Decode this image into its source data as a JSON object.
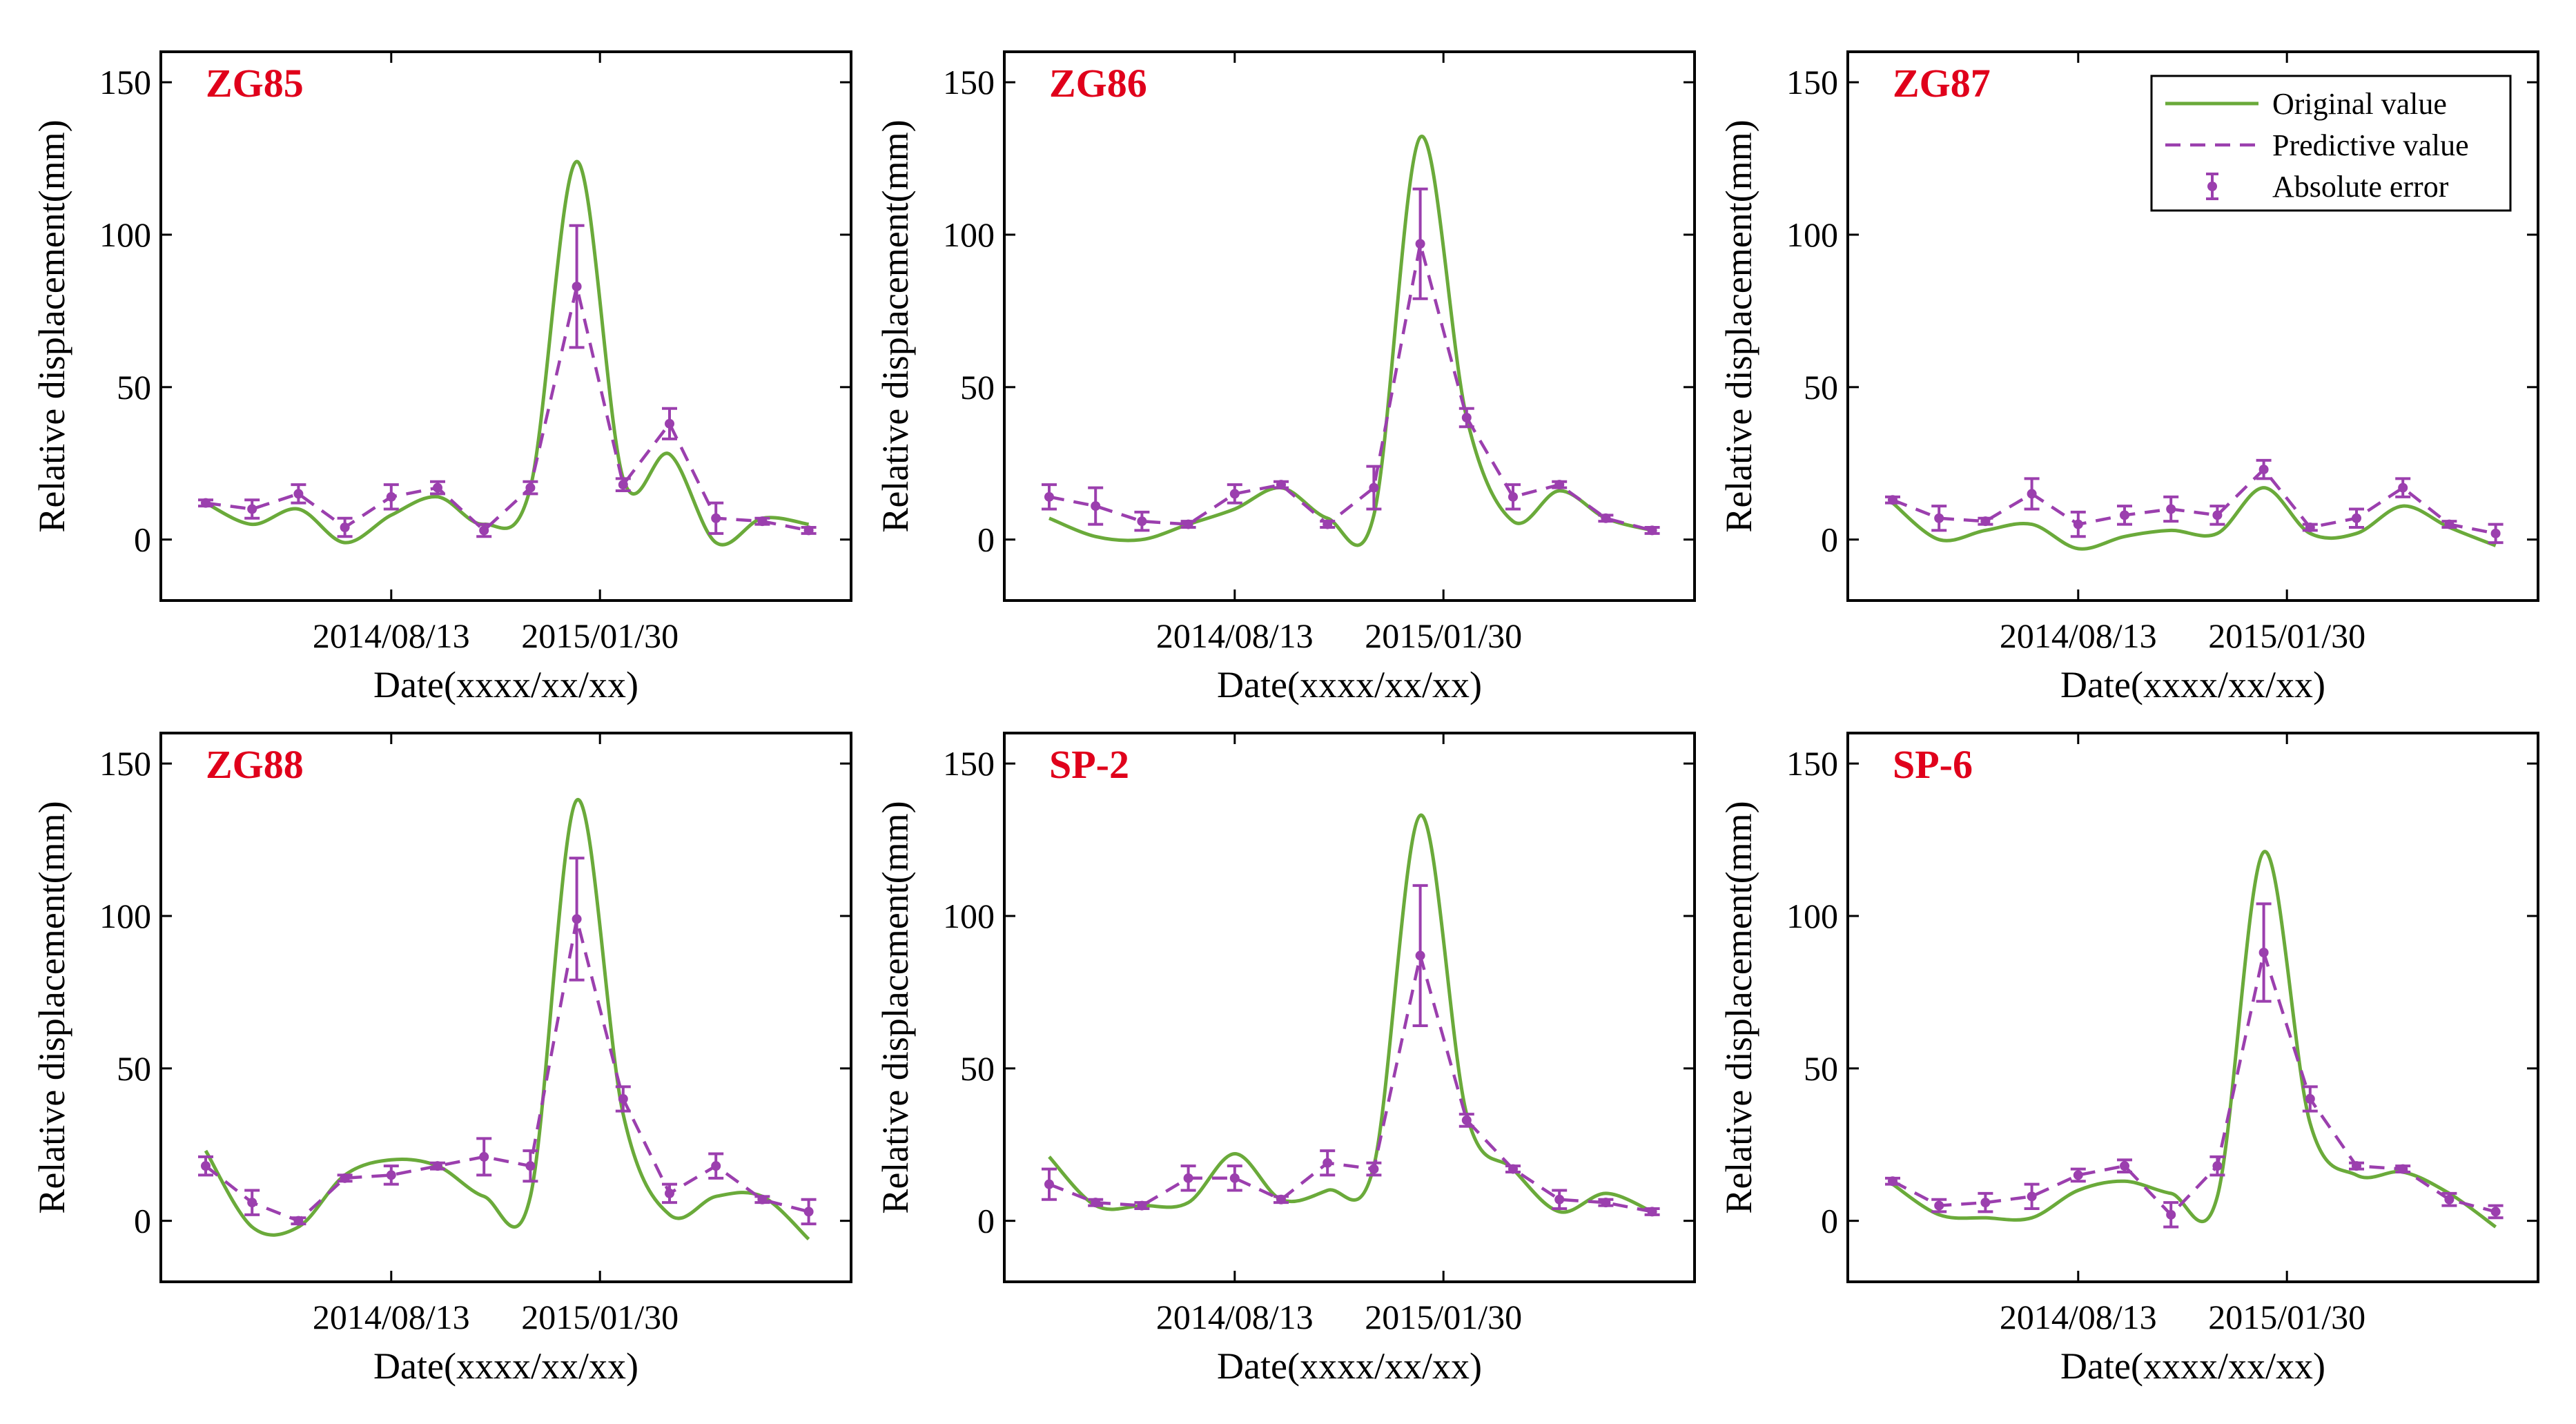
{
  "colors": {
    "original": "#6aaa3a",
    "predictive": "#9b3fae",
    "title": "#e0001b"
  },
  "legend": {
    "original": "Original value",
    "predictive": "Predictive value",
    "error": "Absolute error"
  },
  "chart_data": [
    {
      "type": "line",
      "title": "ZG85",
      "xlabel": "Date(xxxx/xx/xx)",
      "ylabel": "Relative displacement(mm)",
      "ylim": [
        -20,
        160
      ],
      "yticks": [
        0,
        50,
        100,
        150
      ],
      "xticklabels": [
        "2014/08/13",
        "2015/01/30"
      ],
      "x": [
        1,
        2,
        3,
        4,
        5,
        6,
        7,
        8,
        9,
        10,
        11,
        12,
        13,
        14
      ],
      "series": [
        {
          "name": "Original value",
          "values": [
            12,
            5,
            10,
            -1,
            8,
            14,
            5,
            17,
            124,
            20,
            28,
            -1,
            7,
            5
          ]
        },
        {
          "name": "Predictive value",
          "values": [
            12,
            10,
            15,
            4,
            14,
            17,
            3,
            17,
            83,
            18,
            38,
            7,
            6,
            3
          ]
        }
      ],
      "errors": [
        1,
        3,
        3,
        3,
        4,
        2,
        2,
        2,
        20,
        2,
        5,
        5,
        1,
        1
      ]
    },
    {
      "type": "line",
      "title": "ZG86",
      "xlabel": "Date(xxxx/xx/xx)",
      "ylabel": "Relative displacement(mm)",
      "ylim": [
        -20,
        160
      ],
      "yticks": [
        0,
        50,
        100,
        150
      ],
      "xticklabels": [
        "2014/08/13",
        "2015/01/30"
      ],
      "x": [
        1,
        2,
        3,
        4,
        5,
        6,
        7,
        8,
        9,
        10,
        11,
        12,
        13,
        14
      ],
      "series": [
        {
          "name": "Original value",
          "values": [
            7,
            1,
            0,
            5,
            10,
            17,
            7,
            8,
            132,
            40,
            6,
            16,
            7,
            3
          ]
        },
        {
          "name": "Predictive value",
          "values": [
            14,
            11,
            6,
            5,
            15,
            18,
            5,
            17,
            97,
            40,
            14,
            18,
            7,
            3
          ]
        }
      ],
      "errors": [
        4,
        6,
        3,
        1,
        3,
        1,
        1,
        7,
        18,
        3,
        4,
        1,
        1,
        1
      ]
    },
    {
      "type": "line",
      "title": "ZG87",
      "xlabel": "Date(xxxx/xx/xx)",
      "ylabel": "Relative displacement(mm)",
      "ylim": [
        -20,
        160
      ],
      "yticks": [
        0,
        50,
        100,
        150
      ],
      "xticklabels": [
        "2014/08/13",
        "2015/01/30"
      ],
      "x": [
        1,
        2,
        3,
        4,
        5,
        6,
        7,
        8,
        9,
        10,
        11,
        12,
        13,
        14
      ],
      "series": [
        {
          "name": "Original value",
          "values": [
            12,
            0,
            3,
            5,
            -3,
            1,
            3,
            2,
            17,
            2,
            2,
            11,
            4,
            -2
          ]
        },
        {
          "name": "Predictive value",
          "values": [
            13,
            7,
            6,
            15,
            5,
            8,
            10,
            8,
            23,
            4,
            7,
            17,
            5,
            2
          ]
        }
      ],
      "errors": [
        1,
        4,
        1,
        5,
        4,
        3,
        4,
        3,
        3,
        1,
        3,
        3,
        1,
        3
      ]
    },
    {
      "type": "line",
      "title": "ZG88",
      "xlabel": "Date(xxxx/xx/xx)",
      "ylabel": "Relative displacement(mm)",
      "ylim": [
        -20,
        160
      ],
      "yticks": [
        0,
        50,
        100,
        150
      ],
      "xticklabels": [
        "2014/08/13",
        "2015/01/30"
      ],
      "x": [
        1,
        2,
        3,
        4,
        5,
        6,
        7,
        8,
        9,
        10,
        11,
        12,
        13,
        14
      ],
      "series": [
        {
          "name": "Original value",
          "values": [
            23,
            -2,
            -2,
            15,
            20,
            18,
            8,
            8,
            138,
            35,
            2,
            8,
            8,
            -6
          ]
        },
        {
          "name": "Predictive value",
          "values": [
            18,
            6,
            0,
            14,
            15,
            18,
            21,
            18,
            99,
            40,
            9,
            18,
            7,
            3
          ]
        }
      ],
      "errors": [
        3,
        4,
        1,
        1,
        3,
        1,
        6,
        5,
        20,
        4,
        3,
        4,
        1,
        4
      ]
    },
    {
      "type": "line",
      "title": "SP-2",
      "xlabel": "Date(xxxx/xx/xx)",
      "ylabel": "Relative displacement(mm)",
      "ylim": [
        -20,
        160
      ],
      "yticks": [
        0,
        50,
        100,
        150
      ],
      "xticklabels": [
        "2014/08/13",
        "2015/01/30"
      ],
      "x": [
        1,
        2,
        3,
        4,
        5,
        6,
        7,
        8,
        9,
        10,
        11,
        12,
        13,
        14
      ],
      "series": [
        {
          "name": "Original value",
          "values": [
            21,
            5,
            5,
            6,
            22,
            7,
            10,
            18,
            133,
            35,
            17,
            3,
            9,
            3
          ]
        },
        {
          "name": "Predictive value",
          "values": [
            12,
            6,
            5,
            14,
            14,
            7,
            19,
            17,
            87,
            33,
            17,
            7,
            6,
            3
          ]
        }
      ],
      "errors": [
        5,
        1,
        1,
        4,
        4,
        1,
        4,
        2,
        23,
        2,
        1,
        3,
        1,
        1
      ]
    },
    {
      "type": "line",
      "title": "SP-6",
      "xlabel": "Date(xxxx/xx/xx)",
      "ylabel": "Relative displacement(mm)",
      "ylim": [
        -20,
        160
      ],
      "yticks": [
        0,
        50,
        100,
        150
      ],
      "xticklabels": [
        "2014/08/13",
        "2015/01/30"
      ],
      "x": [
        1,
        2,
        3,
        4,
        5,
        6,
        7,
        8,
        9,
        10,
        11,
        12,
        13,
        14
      ],
      "series": [
        {
          "name": "Original value",
          "values": [
            12,
            2,
            1,
            1,
            10,
            13,
            9,
            8,
            121,
            32,
            15,
            16,
            9,
            -2
          ]
        },
        {
          "name": "Predictive value",
          "values": [
            13,
            5,
            6,
            8,
            15,
            18,
            2,
            18,
            88,
            40,
            18,
            17,
            7,
            3
          ]
        }
      ],
      "errors": [
        1,
        2,
        3,
        4,
        2,
        2,
        4,
        3,
        16,
        4,
        1,
        1,
        2,
        2
      ]
    }
  ]
}
